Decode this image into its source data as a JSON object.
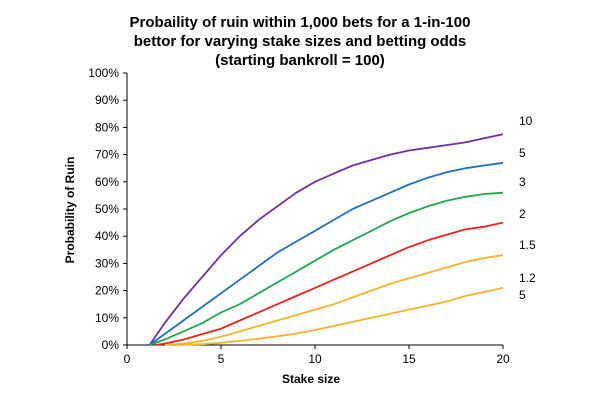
{
  "chart_data": {
    "type": "line",
    "title_lines": [
      "Probaility of ruin within 1,000 bets for a 1-in-100",
      "bettor for varying stake sizes and betting odds",
      "(starting bankroll = 100)"
    ],
    "xlabel": "Stake size",
    "ylabel": "Probability of Ruin",
    "xlim": [
      0,
      20
    ],
    "ylim": [
      0,
      100
    ],
    "x_ticks": [
      "0",
      "5",
      "10",
      "15",
      "20"
    ],
    "y_ticks": [
      "0%",
      "10%",
      "20%",
      "30%",
      "40%",
      "50%",
      "60%",
      "70%",
      "80%",
      "90%",
      "100%"
    ],
    "grid": false,
    "legend": "none",
    "series": [
      {
        "name": "10",
        "color": "#7030a0",
        "x": [
          1.2,
          2,
          3,
          4,
          5,
          6,
          7,
          8,
          9,
          10,
          11,
          12,
          13,
          14,
          15,
          16,
          17,
          18,
          19,
          20
        ],
        "y": [
          0,
          8,
          17,
          25,
          33,
          40,
          46,
          51,
          56,
          60,
          63,
          66,
          68,
          70,
          71.5,
          72.5,
          73.5,
          74.5,
          76,
          77.5
        ]
      },
      {
        "name": "5",
        "color": "#1f6fbf",
        "x": [
          1.2,
          2,
          3,
          4,
          5,
          6,
          7,
          8,
          9,
          10,
          11,
          12,
          13,
          14,
          15,
          16,
          17,
          18,
          19,
          20
        ],
        "y": [
          0,
          4,
          9,
          14,
          19,
          24,
          29,
          34,
          38,
          42,
          46,
          50,
          53,
          56,
          59,
          61.5,
          63.5,
          65,
          66,
          67
        ]
      },
      {
        "name": "3",
        "color": "#21a84a",
        "x": [
          1.2,
          2,
          3,
          4,
          5,
          6,
          7,
          8,
          9,
          10,
          11,
          12,
          13,
          14,
          15,
          16,
          17,
          18,
          19,
          20
        ],
        "y": [
          0,
          2,
          5,
          8,
          12,
          15,
          19,
          23,
          27,
          31,
          35,
          38.5,
          42,
          45.5,
          48.5,
          51,
          53,
          54.5,
          55.5,
          56
        ]
      },
      {
        "name": "2",
        "color": "#e8231f",
        "x": [
          1.5,
          2,
          3,
          4,
          5,
          6,
          7,
          8,
          9,
          10,
          11,
          12,
          13,
          14,
          15,
          16,
          17,
          18,
          19,
          20
        ],
        "y": [
          0,
          0.5,
          2,
          4,
          6,
          9,
          12,
          15,
          18,
          21,
          24,
          27,
          30,
          33,
          36,
          38.5,
          40.5,
          42.5,
          43.5,
          45
        ]
      },
      {
        "name": "1.5",
        "color": "#f5b32c",
        "x": [
          2,
          3,
          4,
          5,
          6,
          7,
          8,
          9,
          10,
          11,
          12,
          13,
          14,
          15,
          16,
          17,
          18,
          19,
          20
        ],
        "y": [
          0,
          0.5,
          1.5,
          3,
          5,
          7,
          9,
          11,
          13,
          15,
          17.5,
          20,
          22.5,
          24.5,
          26.5,
          28.5,
          30.5,
          32,
          33
        ]
      },
      {
        "name": "1.2 5",
        "color": "#f5b32c",
        "x": [
          2.5,
          4,
          5,
          6,
          7,
          8,
          9,
          10,
          11,
          12,
          13,
          14,
          15,
          16,
          17,
          18,
          19,
          20
        ],
        "y": [
          0,
          0.3,
          0.8,
          1.5,
          2.3,
          3.2,
          4.2,
          5.5,
          7,
          8.5,
          10,
          11.5,
          13,
          14.5,
          16,
          18,
          19.5,
          21
        ]
      }
    ],
    "series_labels": [
      "10",
      "5",
      "3",
      "2",
      "1.5",
      "1.2",
      "5"
    ]
  }
}
